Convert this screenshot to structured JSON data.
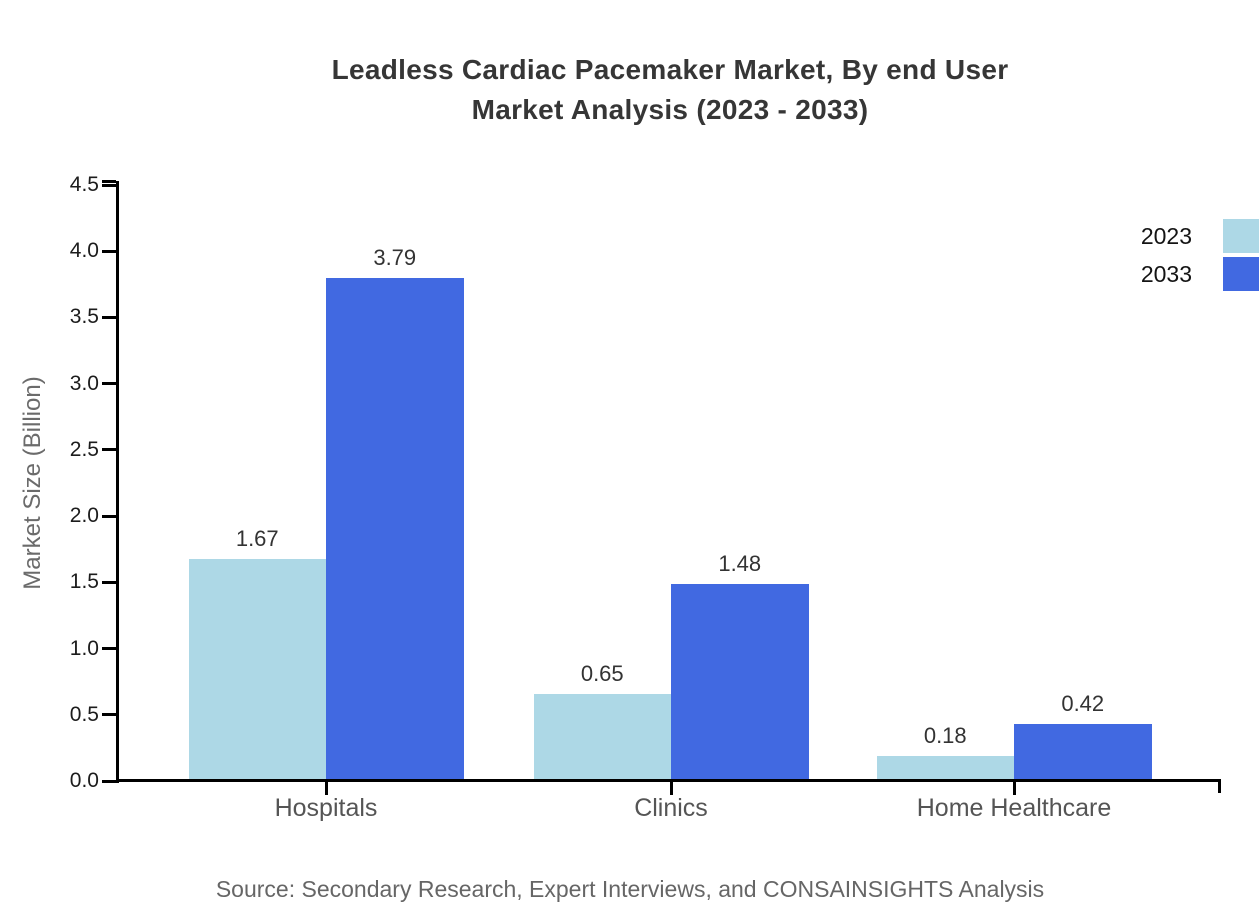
{
  "title": {
    "line1": "Leadless Cardiac Pacemaker Market, By end User",
    "line2": "Market Analysis (2023 - 2033)"
  },
  "source": "Source: Secondary Research, Expert Interviews, and CONSAINSIGHTS Analysis",
  "chart_data": {
    "type": "bar",
    "title": "Leadless Cardiac Pacemaker Market, By end User Market Analysis (2023 - 2033)",
    "categories": [
      "Hospitals",
      "Clinics",
      "Home Healthcare"
    ],
    "series": [
      {
        "name": "2023",
        "color": "#ADD8E6",
        "values": [
          1.67,
          0.65,
          0.18
        ],
        "labels": [
          "1.67",
          "0.65",
          "0.18"
        ]
      },
      {
        "name": "2033",
        "color": "#4169E1",
        "values": [
          3.79,
          1.48,
          0.42
        ],
        "labels": [
          "3.79",
          "1.48",
          "0.42"
        ]
      }
    ],
    "xlabel": "",
    "ylabel": "Market Size (Billion)",
    "ylim": [
      0,
      4.5
    ],
    "yticks": [
      "0.0",
      "0.5",
      "1.0",
      "1.5",
      "2.0",
      "2.5",
      "3.0",
      "3.5",
      "4.0",
      "4.5"
    ],
    "grid": false,
    "legend_position": "top-right",
    "axis_color": "#000000"
  }
}
